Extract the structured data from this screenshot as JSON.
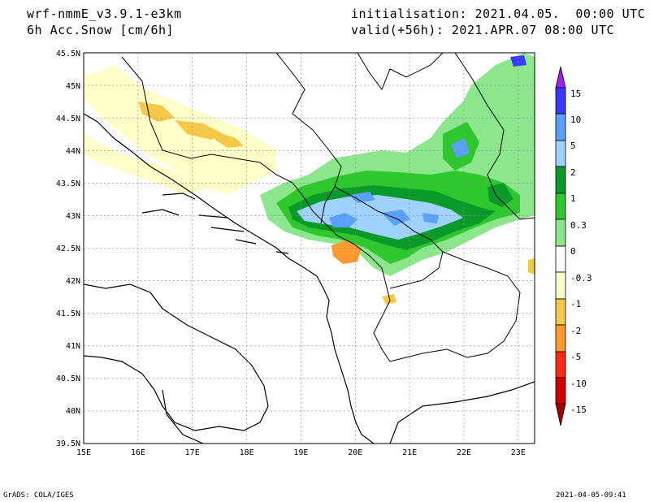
{
  "header": {
    "model": "wrf-nmmE_v3.9.1-e3km",
    "variable": "6h Acc.Snow [cm/6h]",
    "init": "initialisation: 2021.04.05.  00:00 UTC",
    "valid": "valid(+56h): 2021.APR.07 08:00 UTC"
  },
  "map": {
    "lon_ticks": [
      "15E",
      "16E",
      "17E",
      "18E",
      "19E",
      "20E",
      "21E",
      "22E",
      "23E"
    ],
    "lat_ticks": [
      "45.5N",
      "45N",
      "44.5N",
      "44N",
      "43.5N",
      "43N",
      "42.5N",
      "42N",
      "41.5N",
      "41N",
      "40.5N",
      "40N",
      "39.5N"
    ],
    "lon_range": [
      15,
      23.3
    ],
    "lat_range": [
      39.5,
      45.5
    ]
  },
  "legend": {
    "labels": [
      "15",
      "10",
      "5",
      "2",
      "1",
      "0.3",
      "0",
      "-0.3",
      "-1",
      "-2",
      "-5",
      "-10",
      "-15"
    ],
    "colors": [
      "#a020f0",
      "#3a3aff",
      "#5aa0ff",
      "#a0d2ff",
      "#0a9a2a",
      "#2ec82e",
      "#8ce68c",
      "#ffffff",
      "#ffffc8",
      "#f5c84a",
      "#ff9a30",
      "#ff2a10",
      "#d20000",
      "#a00000"
    ]
  },
  "footer": {
    "left": "GrADS: COLA/IGES",
    "right": "2021-04-05-09:41"
  }
}
